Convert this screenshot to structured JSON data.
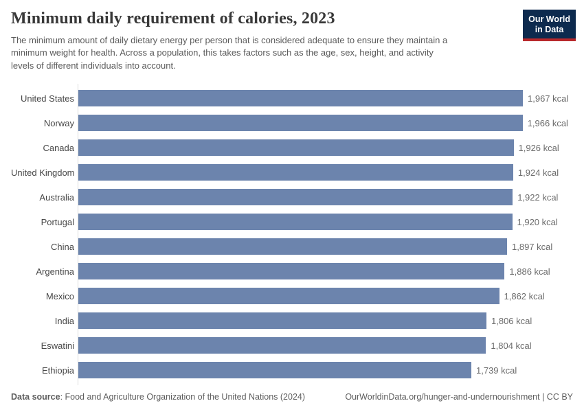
{
  "header": {
    "title": "Minimum daily requirement of calories, 2023",
    "subtitle": "The minimum amount of daily dietary energy per person that is considered adequate to ensure they maintain a\nminimum weight for health. Across a population, this takes factors such as the age, sex, height, and activity\nlevels of different individuals into account.",
    "logo": {
      "line1": "Our World",
      "line2": "in Data"
    }
  },
  "chart_data": {
    "type": "bar",
    "orientation": "horizontal",
    "title": "Minimum daily requirement of calories, 2023",
    "categories": [
      "United States",
      "Norway",
      "Canada",
      "United Kingdom",
      "Australia",
      "Portugal",
      "China",
      "Argentina",
      "Mexico",
      "India",
      "Eswatini",
      "Ethiopia"
    ],
    "values": [
      1967,
      1966,
      1926,
      1924,
      1922,
      1920,
      1897,
      1886,
      1862,
      1806,
      1804,
      1739
    ],
    "value_labels": [
      "1,967 kcal",
      "1,966 kcal",
      "1,926 kcal",
      "1,924 kcal",
      "1,922 kcal",
      "1,920 kcal",
      "1,897 kcal",
      "1,886 kcal",
      "1,862 kcal",
      "1,806 kcal",
      "1,804 kcal",
      "1,739 kcal"
    ],
    "unit": "kcal",
    "xlabel": "",
    "ylabel": "",
    "xlim": [
      0,
      1967
    ],
    "grid": false,
    "legend": "none",
    "bar_color": "#6c84ad"
  },
  "footer": {
    "data_source_label": "Data source",
    "data_source_text": ": Food and Agriculture Organization of the United Nations (2024)",
    "attribution": "OurWorldinData.org/hunger-and-undernourishment | CC BY"
  },
  "colors": {
    "bar": "#6c84ad",
    "logo_background": "#0d2a4e",
    "logo_accent_red": "#b8282b",
    "title_text": "#383838",
    "subtitle_text": "#5a5a5a",
    "country_label_text": "#474747",
    "value_label_text": "#6b6b6b",
    "axis_line": "#dcdcdc"
  }
}
